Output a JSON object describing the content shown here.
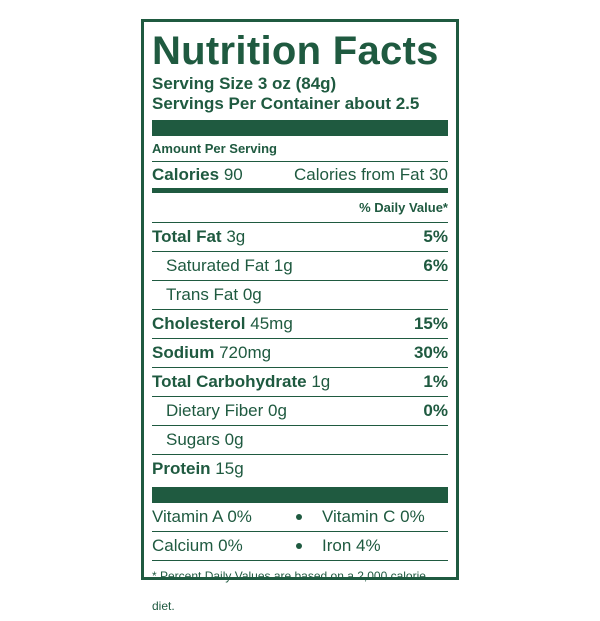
{
  "header": {
    "title": "Nutrition Facts",
    "serving_size": "Serving Size 3 oz (84g)",
    "servings_per_container": "Servings Per Container about 2.5"
  },
  "amount_per_serving": "Amount Per Serving",
  "calories": {
    "label": "Calories",
    "value": "90",
    "from_fat": "Calories from Fat 30"
  },
  "daily_value_header": "% Daily Value*",
  "nutrients": [
    {
      "name": "Total Fat",
      "amount": "3g",
      "dv": "5%"
    },
    {
      "name": "Saturated Fat",
      "amount": "1g",
      "dv": "6%"
    },
    {
      "name": "Trans Fat",
      "amount": "0g"
    },
    {
      "name": "Cholesterol",
      "amount": "45mg",
      "dv": "15%"
    },
    {
      "name": "Sodium",
      "amount": "720mg",
      "dv": "30%"
    },
    {
      "name": "Total Carbohydrate",
      "amount": "1g",
      "dv": "1%"
    },
    {
      "name": "Dietary Fiber",
      "amount": "0g",
      "dv": "0%"
    },
    {
      "name": "Sugars",
      "amount": "0g"
    },
    {
      "name": "Protein",
      "amount": "15g"
    }
  ],
  "vitamins": [
    {
      "name": "Vitamin A",
      "value": "0%"
    },
    {
      "name": "Vitamin C",
      "value": "0%"
    },
    {
      "name": "Calcium",
      "value": "0%"
    },
    {
      "name": "Iron",
      "value": "4%"
    }
  ],
  "footnote": "* Percent Daily Values are based on a 2,000 calorie diet."
}
